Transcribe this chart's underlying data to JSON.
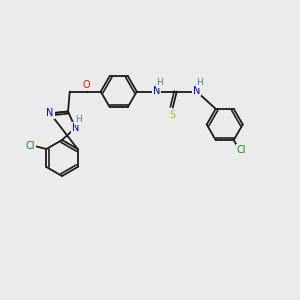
{
  "bg_color": "#ebebeb",
  "bond_color": "#1a1a1a",
  "atom_colors": {
    "N": "#0000cc",
    "O": "#cc2200",
    "S": "#bbbb00",
    "Cl": "#009900",
    "H": "#448888"
  },
  "lw": 1.3,
  "fs": 7.0,
  "figsize": [
    3.0,
    3.0
  ],
  "dpi": 100
}
